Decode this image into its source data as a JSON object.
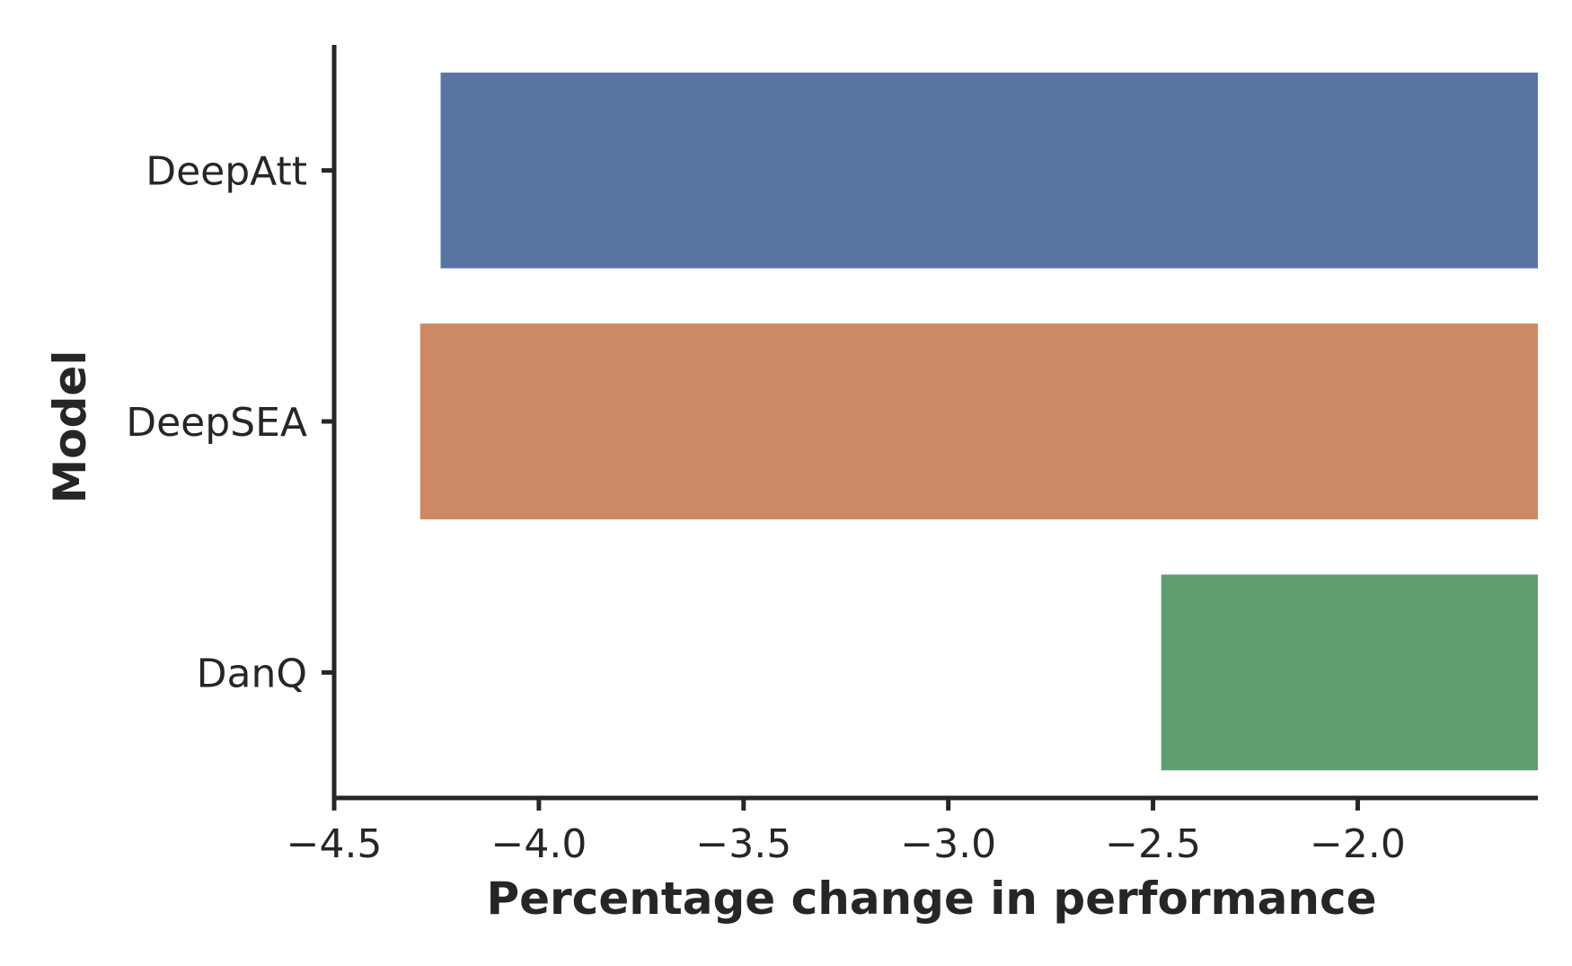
{
  "chart_data": {
    "type": "bar",
    "orientation": "horizontal",
    "title": "",
    "xlabel": "Percentage change in performance",
    "ylabel": "Model",
    "categories": [
      "DeepAtt",
      "DeepSEA",
      "DanQ"
    ],
    "values": [
      -4.24,
      -4.29,
      -2.48
    ],
    "colors": [
      "#5975a4",
      "#cc8963",
      "#5f9e6e"
    ],
    "xlim": [
      -4.5,
      -1.56
    ],
    "xticks": [
      -4.5,
      -4.0,
      -3.5,
      -3.0,
      -2.5,
      -2.0
    ],
    "xtick_labels": [
      "−4.5",
      "−4.0",
      "−3.5",
      "−3.0",
      "−2.5",
      "−2.0"
    ],
    "grid": false,
    "legend": "none"
  }
}
